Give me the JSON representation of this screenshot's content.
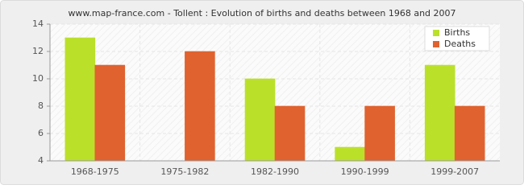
{
  "chart_data": {
    "type": "bar",
    "title": "www.map-france.com - Tollent : Evolution of births and deaths between 1968 and 2007",
    "categories": [
      "1968-1975",
      "1975-1982",
      "1982-1990",
      "1990-1999",
      "1999-2007"
    ],
    "series": [
      {
        "name": "Births",
        "color": "#bbe02a",
        "values": [
          13,
          4,
          10,
          5,
          11
        ]
      },
      {
        "name": "Deaths",
        "color": "#e0622f",
        "values": [
          11,
          12,
          8,
          8,
          8
        ]
      }
    ],
    "ylim": [
      4,
      14
    ],
    "yticks": [
      4,
      6,
      8,
      10,
      12,
      14
    ],
    "grid": true,
    "legend": "top-right"
  }
}
